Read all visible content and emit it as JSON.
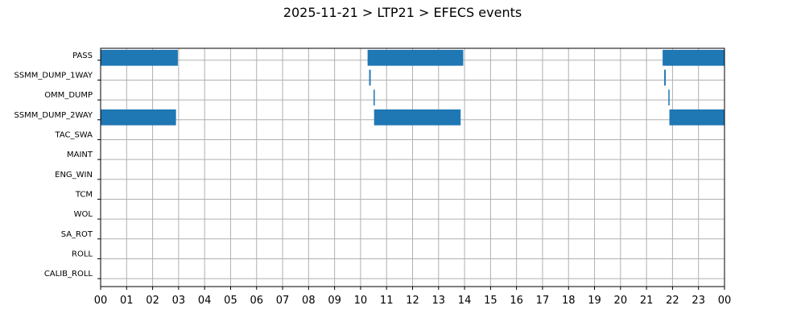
{
  "chart_data": {
    "type": "bar",
    "subtype": "timeline",
    "title": "2025-11-21 > LTP21 > EFECS events",
    "xlabel": "",
    "ylabel": "",
    "xlim": [
      0,
      24
    ],
    "x_tick_labels": [
      "00",
      "01",
      "02",
      "03",
      "04",
      "05",
      "06",
      "07",
      "08",
      "09",
      "10",
      "11",
      "12",
      "13",
      "14",
      "15",
      "16",
      "17",
      "18",
      "19",
      "20",
      "21",
      "22",
      "23",
      "00"
    ],
    "categories": [
      "PASS",
      "SSMM_DUMP_1WAY",
      "OMM_DUMP",
      "SSMM_DUMP_2WAY",
      "TAC_SWA",
      "MAINT",
      "ENG_WIN",
      "TCM",
      "WOL",
      "SA_ROT",
      "ROLL",
      "CALIB_ROLL"
    ],
    "grid": true,
    "bar_color": "#1f77b4",
    "events": [
      {
        "category": "PASS",
        "start": 0.0,
        "end": 2.97
      },
      {
        "category": "PASS",
        "start": 10.27,
        "end": 13.95
      },
      {
        "category": "PASS",
        "start": 21.62,
        "end": 24.0
      },
      {
        "category": "SSMM_DUMP_1WAY",
        "start": 10.33,
        "end": 10.39
      },
      {
        "category": "SSMM_DUMP_1WAY",
        "start": 21.68,
        "end": 21.74
      },
      {
        "category": "OMM_DUMP",
        "start": 10.5,
        "end": 10.54
      },
      {
        "category": "OMM_DUMP",
        "start": 21.84,
        "end": 21.88
      },
      {
        "category": "SSMM_DUMP_2WAY",
        "start": 0.0,
        "end": 2.9
      },
      {
        "category": "SSMM_DUMP_2WAY",
        "start": 10.52,
        "end": 13.85
      },
      {
        "category": "SSMM_DUMP_2WAY",
        "start": 21.88,
        "end": 24.0
      }
    ]
  }
}
